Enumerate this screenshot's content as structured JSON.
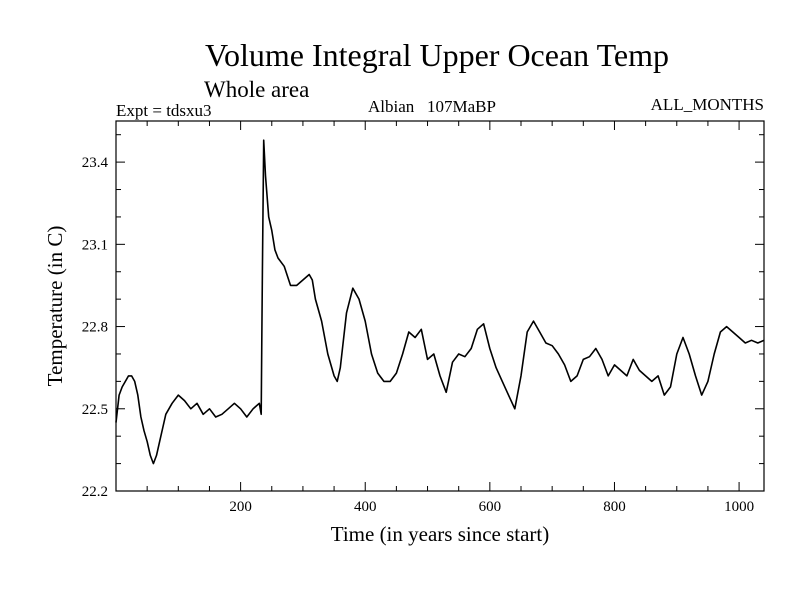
{
  "chart_data": {
    "type": "line",
    "title": "Volume Integral Upper Ocean Temp",
    "subtitle": "Whole area",
    "annotations": {
      "left": "Expt = tdsxu3",
      "center": "Albian   107MaBP",
      "right": "ALL_MONTHS"
    },
    "xlabel": "Time (in years since start)",
    "ylabel": "Temperature (in C)",
    "xlim": [
      0,
      1040
    ],
    "ylim": [
      22.2,
      23.55
    ],
    "xticks": [
      200,
      400,
      600,
      800,
      1000
    ],
    "yticks": [
      22.2,
      22.5,
      22.8,
      23.1,
      23.4
    ],
    "xtick_labels": [
      "200",
      "400",
      "600",
      "800",
      "1000"
    ],
    "ytick_labels": [
      "22.2",
      "22.5",
      "22.8",
      "23.1",
      "23.4"
    ],
    "grid": false,
    "series": [
      {
        "name": "tdsxu3",
        "x": [
          0,
          5,
          10,
          20,
          25,
          30,
          35,
          40,
          45,
          50,
          55,
          60,
          65,
          70,
          75,
          80,
          90,
          100,
          110,
          120,
          130,
          140,
          150,
          160,
          170,
          180,
          190,
          200,
          210,
          220,
          230,
          233,
          234,
          235,
          237,
          240,
          245,
          250,
          255,
          260,
          270,
          280,
          290,
          300,
          310,
          315,
          320,
          330,
          340,
          350,
          355,
          360,
          370,
          380,
          390,
          400,
          410,
          420,
          430,
          440,
          450,
          460,
          470,
          480,
          490,
          500,
          510,
          520,
          530,
          540,
          550,
          560,
          570,
          580,
          590,
          600,
          610,
          620,
          630,
          640,
          650,
          660,
          670,
          680,
          690,
          700,
          710,
          720,
          730,
          740,
          750,
          760,
          770,
          780,
          790,
          800,
          810,
          820,
          830,
          840,
          850,
          860,
          870,
          880,
          890,
          900,
          910,
          920,
          930,
          940,
          950,
          960,
          970,
          980,
          990,
          1000,
          1010,
          1020,
          1030,
          1040
        ],
        "y": [
          22.45,
          22.55,
          22.58,
          22.62,
          22.62,
          22.6,
          22.55,
          22.47,
          22.42,
          22.38,
          22.33,
          22.3,
          22.33,
          22.38,
          22.43,
          22.48,
          22.52,
          22.55,
          22.53,
          22.5,
          22.52,
          22.48,
          22.5,
          22.47,
          22.48,
          22.5,
          22.52,
          22.5,
          22.47,
          22.5,
          22.52,
          22.48,
          22.75,
          23.0,
          23.48,
          23.35,
          23.2,
          23.15,
          23.08,
          23.05,
          23.02,
          22.95,
          22.95,
          22.97,
          22.99,
          22.97,
          22.9,
          22.82,
          22.7,
          22.62,
          22.6,
          22.65,
          22.85,
          22.94,
          22.9,
          22.82,
          22.7,
          22.63,
          22.6,
          22.6,
          22.63,
          22.7,
          22.78,
          22.76,
          22.79,
          22.68,
          22.7,
          22.62,
          22.56,
          22.67,
          22.7,
          22.69,
          22.72,
          22.79,
          22.81,
          22.72,
          22.65,
          22.6,
          22.55,
          22.5,
          22.62,
          22.78,
          22.82,
          22.78,
          22.74,
          22.73,
          22.7,
          22.66,
          22.6,
          22.62,
          22.68,
          22.69,
          22.72,
          22.68,
          22.62,
          22.66,
          22.64,
          22.62,
          22.68,
          22.64,
          22.62,
          22.6,
          22.62,
          22.55,
          22.58,
          22.7,
          22.76,
          22.7,
          22.62,
          22.55,
          22.6,
          22.7,
          22.78,
          22.8,
          22.78,
          22.76,
          22.74,
          22.75,
          22.74,
          22.75
        ]
      }
    ]
  }
}
